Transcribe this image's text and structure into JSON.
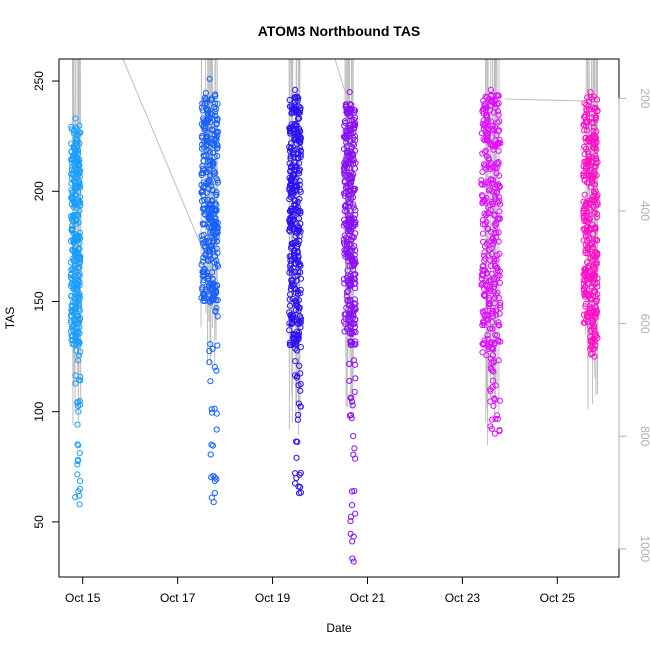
{
  "chart_data": {
    "type": "scatter",
    "title": "ATOM3 Northbound TAS",
    "xlabel": "Date",
    "ylabel": "TAS",
    "x_ticks": [
      "Oct 15",
      "Oct 17",
      "Oct 19",
      "Oct 21",
      "Oct 23",
      "Oct 25"
    ],
    "xlim_days": [
      14.5,
      26.3
    ],
    "ylim": [
      25,
      260
    ],
    "y_ticks": [
      50,
      100,
      150,
      200,
      250
    ],
    "y2_ticks": [
      200,
      400,
      600,
      800,
      1000
    ],
    "y2lim": [
      130,
      1050
    ],
    "y2_reversed": true,
    "colors": {
      "series1": "#1a9fff",
      "series2": "#1560ff",
      "series3": "#2a10f5",
      "series4": "#8a10f5",
      "series5": "#dc10ff",
      "series6": "#ff10c8",
      "pressure_line": "#bfbfbf",
      "right_axis": "#b0b0b0"
    },
    "series": [
      {
        "x_range": [
          14.75,
          14.95
        ],
        "ymin": 58,
        "ymax": 233,
        "dense_min": 130,
        "dense_max": 230,
        "color": "series1"
      },
      {
        "x_range": [
          17.5,
          17.85
        ],
        "ymin": 59,
        "ymax": 251,
        "dense_min": 150,
        "dense_max": 245,
        "color": "series2"
      },
      {
        "x_range": [
          19.35,
          19.6
        ],
        "ymin": 63,
        "ymax": 246,
        "dense_min": 130,
        "dense_max": 243,
        "color": "series3"
      },
      {
        "x_range": [
          20.5,
          20.75
        ],
        "ymin": 32,
        "ymax": 245,
        "dense_min": 130,
        "dense_max": 240,
        "color": "series4"
      },
      {
        "x_range": [
          23.4,
          23.8
        ],
        "ymin": 90,
        "ymax": 246,
        "dense_min": 125,
        "dense_max": 244,
        "color": "series5"
      },
      {
        "x_range": [
          25.55,
          25.85
        ],
        "ymin": 125,
        "ymax": 245,
        "dense_min": 140,
        "dense_max": 243,
        "color": "series6"
      }
    ]
  }
}
